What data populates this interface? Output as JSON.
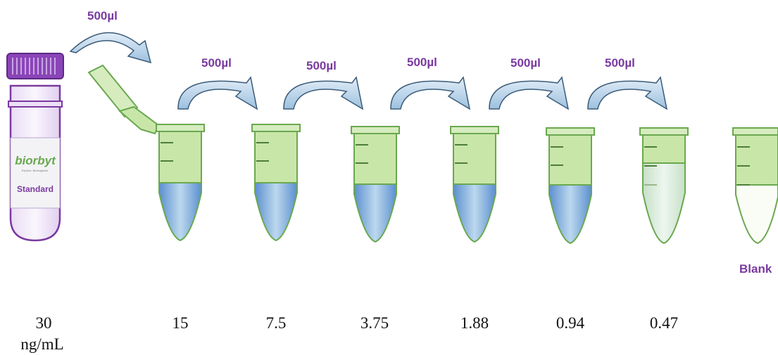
{
  "diagram": {
    "transfer_volume_label": "500µl",
    "stock": {
      "brand": "biorbyt",
      "tagline": "Explore. Bioreagents.",
      "label": "Standard",
      "concentration": "30",
      "unit": "ng/mL"
    },
    "tubes": [
      {
        "concentration": "15",
        "fill": "blue"
      },
      {
        "concentration": "7.5",
        "fill": "blue"
      },
      {
        "concentration": "3.75",
        "fill": "blue"
      },
      {
        "concentration": "1.88",
        "fill": "blue"
      },
      {
        "concentration": "0.94",
        "fill": "blue"
      },
      {
        "concentration": "0.47",
        "fill": "pale"
      }
    ],
    "blank": {
      "label": "Blank",
      "fill": "clear"
    }
  },
  "colors": {
    "purple": "#7a3aa0",
    "tube_green": "#c8e6a8",
    "tube_outline": "#6aa84f",
    "liquid_blue": "#4a86c5",
    "arrow_blue": "#b4d2ea"
  }
}
